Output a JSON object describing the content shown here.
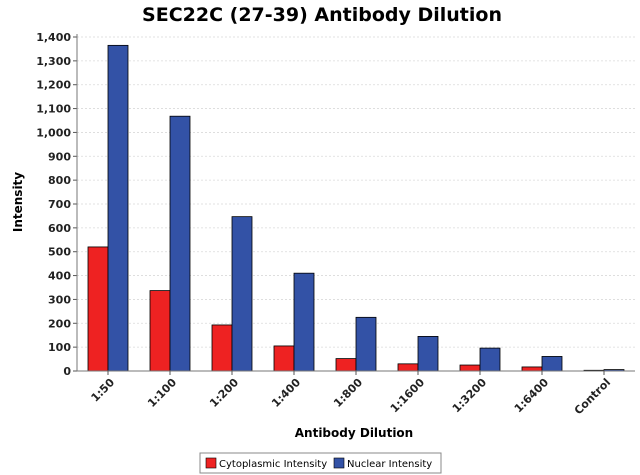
{
  "chart_data": {
    "type": "bar",
    "title": "SEC22C (27-39) Antibody Dilution",
    "xlabel": "Antibody Dilution",
    "ylabel": "Intensity",
    "categories": [
      "1:50",
      "1:100",
      "1:200",
      "1:400",
      "1:800",
      "1:1600",
      "1:3200",
      "1:6400",
      "Control"
    ],
    "series": [
      {
        "name": "Cytoplasmic Intensity",
        "color": "#ee2222",
        "values": [
          520,
          337,
          193,
          105,
          52,
          30,
          25,
          17,
          3
        ]
      },
      {
        "name": "Nuclear Intensity",
        "color": "#3352a6",
        "values": [
          1365,
          1068,
          647,
          410,
          225,
          145,
          96,
          61,
          6
        ]
      }
    ],
    "ylim": [
      0,
      1400
    ],
    "yticks": [
      "0",
      "100",
      "200",
      "300",
      "400",
      "500",
      "600",
      "700",
      "800",
      "900",
      "1,000",
      "1,100",
      "1,200",
      "1,300",
      "1,400"
    ],
    "grid": true,
    "legend_position": "bottom"
  }
}
